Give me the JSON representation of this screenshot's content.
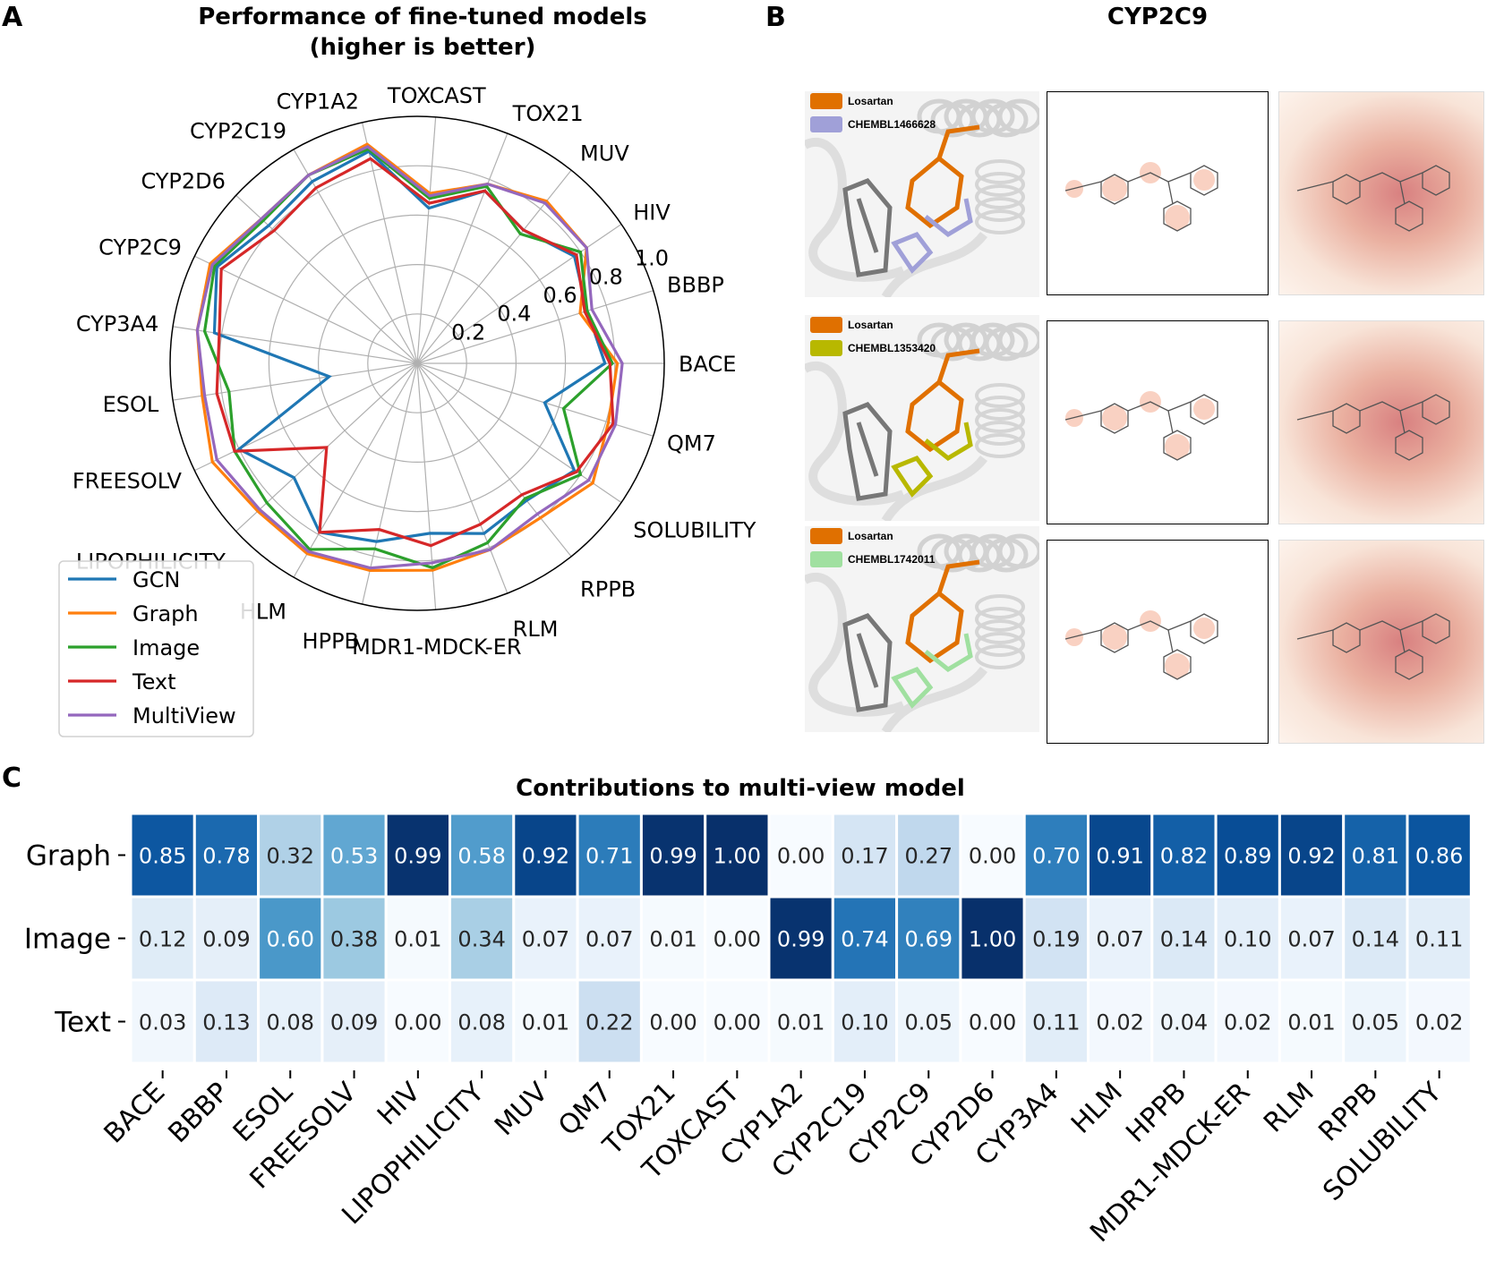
{
  "panel_labels": {
    "a": "A",
    "b": "B",
    "c": "C"
  },
  "panel_b": {
    "title": "CYP2C9",
    "rows": [
      {
        "reference": "Losartan",
        "reference_color": "#e07000",
        "ligand": "CHEMBL1466628",
        "ligand_color": "#a0a0d8"
      },
      {
        "reference": "Losartan",
        "reference_color": "#e07000",
        "ligand": "CHEMBL1353420",
        "ligand_color": "#b8b800"
      },
      {
        "reference": "Losartan",
        "reference_color": "#e07000",
        "ligand": "CHEMBL1742011",
        "ligand_color": "#a0e0a0"
      }
    ]
  },
  "chart_data": [
    {
      "type": "radar",
      "title": "Performance of fine-tuned models",
      "subtitle": "(higher is better)",
      "axes": [
        "BACE",
        "BBBP",
        "HIV",
        "MUV",
        "TOX21",
        "TOXCAST",
        "CYP1A2",
        "CYP2C19",
        "CYP2D6",
        "CYP2C9",
        "CYP3A4",
        "ESOL",
        "FREESOLV",
        "LIPOPHILICITY",
        "HLM",
        "HPPB",
        "MDR1-MDCK-ER",
        "RLM",
        "RPPB",
        "SOLUBILITY",
        "QM7"
      ],
      "radial_ticks": [
        "0.2",
        "0.4",
        "0.6",
        "0.8",
        "1.0"
      ],
      "rlim": [
        0,
        1.0
      ],
      "grid": true,
      "legend_placement": "lower-left",
      "series": [
        {
          "name": "GCN",
          "color": "#1f77b4",
          "values": [
            0.76,
            0.72,
            0.77,
            0.69,
            0.75,
            0.63,
            0.88,
            0.85,
            0.82,
            0.9,
            0.83,
            0.36,
            0.8,
            0.68,
            0.79,
            0.74,
            0.69,
            0.74,
            0.71,
            0.77,
            0.54
          ]
        },
        {
          "name": "Graph",
          "color": "#ff7f0e",
          "values": [
            0.81,
            0.69,
            0.83,
            0.84,
            0.78,
            0.69,
            0.91,
            0.88,
            0.86,
            0.93,
            0.9,
            0.88,
            0.92,
            0.88,
            0.89,
            0.86,
            0.84,
            0.81,
            0.8,
            0.86,
            0.81
          ]
        },
        {
          "name": "Image",
          "color": "#2ca02c",
          "values": [
            0.79,
            0.72,
            0.8,
            0.67,
            0.77,
            0.67,
            0.89,
            0.88,
            0.85,
            0.91,
            0.87,
            0.77,
            0.82,
            0.83,
            0.87,
            0.77,
            0.83,
            0.78,
            0.7,
            0.8,
            0.62
          ]
        },
        {
          "name": "Text",
          "color": "#d62728",
          "values": [
            0.78,
            0.71,
            0.78,
            0.69,
            0.75,
            0.65,
            0.85,
            0.82,
            0.79,
            0.88,
            0.81,
            0.82,
            0.82,
            0.5,
            0.79,
            0.69,
            0.74,
            0.7,
            0.68,
            0.78,
            0.83
          ]
        },
        {
          "name": "MultiView",
          "color": "#9467bd",
          "values": [
            0.83,
            0.74,
            0.83,
            0.83,
            0.78,
            0.68,
            0.9,
            0.88,
            0.86,
            0.92,
            0.9,
            0.87,
            0.9,
            0.87,
            0.88,
            0.85,
            0.81,
            0.81,
            0.78,
            0.84,
            0.84
          ]
        }
      ]
    },
    {
      "type": "heatmap",
      "title": "Contributions to multi-view model",
      "colormap": "Blues",
      "rows": [
        "Graph",
        "Image",
        "Text"
      ],
      "columns": [
        "BACE",
        "BBBP",
        "ESOL",
        "FREESOLV",
        "HIV",
        "LIPOPHILICITY",
        "MUV",
        "QM7",
        "TOX21",
        "TOXCAST",
        "CYP1A2",
        "CYP2C19",
        "CYP2C9",
        "CYP2D6",
        "CYP3A4",
        "HLM",
        "HPPB",
        "MDR1-MDCK-ER",
        "RLM",
        "RPPB",
        "SOLUBILITY"
      ],
      "values": [
        [
          "0.85",
          "0.78",
          "0.32",
          "0.53",
          "0.99",
          "0.58",
          "0.92",
          "0.71",
          "0.99",
          "1.00",
          "0.00",
          "0.17",
          "0.27",
          "0.00",
          "0.70",
          "0.91",
          "0.82",
          "0.89",
          "0.92",
          "0.81",
          "0.86"
        ],
        [
          "0.12",
          "0.09",
          "0.60",
          "0.38",
          "0.01",
          "0.34",
          "0.07",
          "0.07",
          "0.01",
          "0.00",
          "0.99",
          "0.74",
          "0.69",
          "1.00",
          "0.19",
          "0.07",
          "0.14",
          "0.10",
          "0.07",
          "0.14",
          "0.11"
        ],
        [
          "0.03",
          "0.13",
          "0.08",
          "0.09",
          "0.00",
          "0.08",
          "0.01",
          "0.22",
          "0.00",
          "0.00",
          "0.01",
          "0.10",
          "0.05",
          "0.00",
          "0.11",
          "0.02",
          "0.04",
          "0.02",
          "0.01",
          "0.05",
          "0.02"
        ]
      ]
    }
  ]
}
